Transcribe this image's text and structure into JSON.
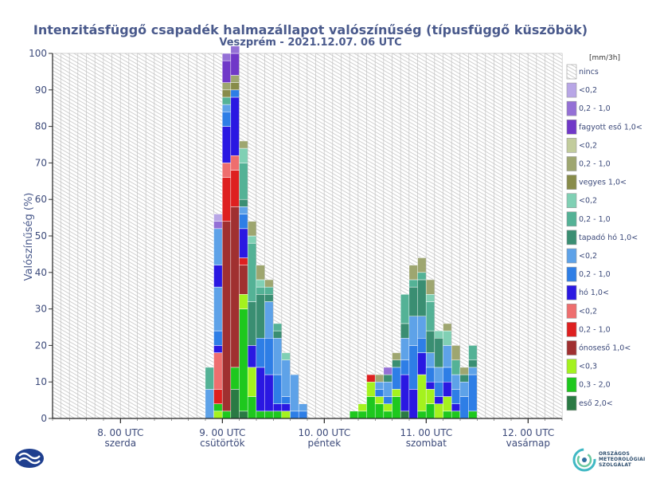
{
  "colors": {
    "title": "#4a5a8c",
    "axis_text": "#3c4a7a",
    "grid": "#dcdcdc",
    "hatch": "#c8c8c8"
  },
  "logo": {
    "org_line1": "ORSZÁGOS",
    "org_line2": "METEOROLÓGIAI",
    "org_line3": "SZOLGÁLAT"
  },
  "chart_data": {
    "type": "bar",
    "stacked": true,
    "title": "Intenzitásfüggő csapadék halmazállapot valószínűség (típusfüggő küszöbök)",
    "subtitle": "Veszprém - 2021.12.07. 06 UTC",
    "ylabel": "Valószínűség (%)",
    "ylim": [
      0,
      100
    ],
    "yticks": [
      0,
      10,
      20,
      30,
      40,
      50,
      60,
      70,
      80,
      90,
      100
    ],
    "x_tick_labels": [
      {
        "date": "8. 00 UTC",
        "day": "szerda",
        "index": 8
      },
      {
        "date": "9. 00 UTC",
        "day": "csütörtök",
        "index": 20
      },
      {
        "date": "10. 00 UTC",
        "day": "péntek",
        "index": 32
      },
      {
        "date": "11. 00 UTC",
        "day": "szombat",
        "index": 44
      },
      {
        "date": "12. 00 UTC",
        "day": "vasárnap",
        "index": 56
      }
    ],
    "bar_count": 60,
    "legend_unit": "[mm/3h]",
    "categories_legend": [
      {
        "name": "nincs",
        "color": "hatch"
      },
      {
        "name": "<0,2",
        "color": "#b8a6e6"
      },
      {
        "name": "0,2 - 1,0",
        "color": "#9470d6"
      },
      {
        "name": "fagyott eső 1,0<",
        "color": "#7038c8"
      },
      {
        "name": "<0,2",
        "color": "#c2cc9c"
      },
      {
        "name": "0,2 - 1,0",
        "color": "#9ea670"
      },
      {
        "name": "vegyes 1,0<",
        "color": "#888c4a"
      },
      {
        "name": "<0,2",
        "color": "#80d0b4"
      },
      {
        "name": "0,2 - 1,0",
        "color": "#54b296"
      },
      {
        "name": "tapadó hó 1,0<",
        "color": "#3a8e72"
      },
      {
        "name": "<0,2",
        "color": "#5ea2e8"
      },
      {
        "name": "0,2 - 1,0",
        "color": "#2e7ee6"
      },
      {
        "name": "hó 1,0<",
        "color": "#2a18e2"
      },
      {
        "name": "<0,2",
        "color": "#ee6e6e"
      },
      {
        "name": "0,2 - 1,0",
        "color": "#de2020"
      },
      {
        "name": "ónoseső 1,0<",
        "color": "#a03030"
      },
      {
        "name": "<0,3",
        "color": "#a4f21e"
      },
      {
        "name": "0,3 - 2,0",
        "color": "#1ec81e"
      },
      {
        "name": "eső 2,0<",
        "color": "#2a7a44"
      }
    ],
    "bars": [
      {
        "i": 18,
        "segments": [
          [
            "#5ea2e8",
            8
          ],
          [
            "#54b296",
            6
          ]
        ]
      },
      {
        "i": 19,
        "segments": [
          [
            "#a4f21e",
            2
          ],
          [
            "#1ec81e",
            2
          ],
          [
            "#de2020",
            4
          ],
          [
            "#ee6e6e",
            10
          ],
          [
            "#2a18e2",
            2
          ],
          [
            "#2e7ee6",
            4
          ],
          [
            "#5ea2e8",
            12
          ],
          [
            "#2a18e2",
            6
          ],
          [
            "#5ea2e8",
            10
          ],
          [
            "#9470d6",
            2
          ],
          [
            "#b8a6e6",
            2
          ]
        ]
      },
      {
        "i": 20,
        "segments": [
          [
            "#1ec81e",
            2
          ],
          [
            "#a03030",
            52
          ],
          [
            "#de2020",
            12
          ],
          [
            "#ee6e6e",
            4
          ],
          [
            "#2a18e2",
            10
          ],
          [
            "#2e7ee6",
            4
          ],
          [
            "#5ea2e8",
            2
          ],
          [
            "#54b296",
            2
          ],
          [
            "#888c4a",
            2
          ],
          [
            "#9ea670",
            2
          ],
          [
            "#7038c8",
            6
          ],
          [
            "#9470d6",
            2
          ]
        ]
      },
      {
        "i": 21,
        "segments": [
          [
            "#2a7a44",
            8
          ],
          [
            "#1ec81e",
            6
          ],
          [
            "#a03030",
            44
          ],
          [
            "#de2020",
            10
          ],
          [
            "#ee6e6e",
            4
          ],
          [
            "#2a18e2",
            16
          ],
          [
            "#2e7ee6",
            2
          ],
          [
            "#888c4a",
            2
          ],
          [
            "#9ea670",
            2
          ],
          [
            "#7038c8",
            6
          ],
          [
            "#9470d6",
            2
          ]
        ]
      },
      {
        "i": 22,
        "segments": [
          [
            "#2a7a44",
            2
          ],
          [
            "#1ec81e",
            28
          ],
          [
            "#a4f21e",
            4
          ],
          [
            "#a03030",
            8
          ],
          [
            "#de2020",
            2
          ],
          [
            "#2a18e2",
            8
          ],
          [
            "#2e7ee6",
            4
          ],
          [
            "#5ea2e8",
            2
          ],
          [
            "#3a8e72",
            2
          ],
          [
            "#54b296",
            10
          ],
          [
            "#80d0b4",
            4
          ],
          [
            "#9ea670",
            2
          ]
        ]
      },
      {
        "i": 23,
        "segments": [
          [
            "#1ec81e",
            6
          ],
          [
            "#a4f21e",
            8
          ],
          [
            "#2a18e2",
            6
          ],
          [
            "#3a8e72",
            12
          ],
          [
            "#54b296",
            16
          ],
          [
            "#80d0b4",
            2
          ],
          [
            "#9ea670",
            4
          ]
        ]
      },
      {
        "i": 24,
        "segments": [
          [
            "#1ec81e",
            2
          ],
          [
            "#2a18e2",
            12
          ],
          [
            "#2e7ee6",
            8
          ],
          [
            "#3a8e72",
            12
          ],
          [
            "#54b296",
            2
          ],
          [
            "#80d0b4",
            2
          ],
          [
            "#9ea670",
            4
          ]
        ]
      },
      {
        "i": 25,
        "segments": [
          [
            "#1ec81e",
            2
          ],
          [
            "#2a18e2",
            10
          ],
          [
            "#2e7ee6",
            10
          ],
          [
            "#5ea2e8",
            10
          ],
          [
            "#3a8e72",
            2
          ],
          [
            "#54b296",
            2
          ],
          [
            "#9ea670",
            2
          ]
        ]
      },
      {
        "i": 26,
        "segments": [
          [
            "#1ec81e",
            2
          ],
          [
            "#2a18e2",
            2
          ],
          [
            "#2e7ee6",
            8
          ],
          [
            "#5ea2e8",
            10
          ],
          [
            "#3a8e72",
            2
          ],
          [
            "#54b296",
            2
          ]
        ]
      },
      {
        "i": 27,
        "segments": [
          [
            "#a4f21e",
            2
          ],
          [
            "#2a18e2",
            2
          ],
          [
            "#2e7ee6",
            2
          ],
          [
            "#5ea2e8",
            10
          ],
          [
            "#80d0b4",
            2
          ]
        ]
      },
      {
        "i": 28,
        "segments": [
          [
            "#2e7ee6",
            2
          ],
          [
            "#5ea2e8",
            10
          ]
        ]
      },
      {
        "i": 29,
        "segments": [
          [
            "#2e7ee6",
            2
          ],
          [
            "#5ea2e8",
            2
          ]
        ]
      },
      {
        "i": 35,
        "segments": [
          [
            "#1ec81e",
            2
          ]
        ]
      },
      {
        "i": 36,
        "segments": [
          [
            "#1ec81e",
            2
          ],
          [
            "#a4f21e",
            2
          ]
        ]
      },
      {
        "i": 37,
        "segments": [
          [
            "#1ec81e",
            6
          ],
          [
            "#a4f21e",
            4
          ],
          [
            "#de2020",
            2
          ]
        ]
      },
      {
        "i": 38,
        "segments": [
          [
            "#1ec81e",
            4
          ],
          [
            "#a4f21e",
            2
          ],
          [
            "#2e7ee6",
            2
          ],
          [
            "#5ea2e8",
            2
          ],
          [
            "#9ea670",
            2
          ]
        ]
      },
      {
        "i": 39,
        "segments": [
          [
            "#1ec81e",
            2
          ],
          [
            "#a4f21e",
            2
          ],
          [
            "#2e7ee6",
            2
          ],
          [
            "#5ea2e8",
            4
          ],
          [
            "#3a8e72",
            2
          ],
          [
            "#9470d6",
            2
          ]
        ]
      },
      {
        "i": 40,
        "segments": [
          [
            "#1ec81e",
            6
          ],
          [
            "#a4f21e",
            2
          ],
          [
            "#2e7ee6",
            6
          ],
          [
            "#3a8e72",
            2
          ],
          [
            "#9ea670",
            2
          ]
        ]
      },
      {
        "i": 41,
        "segments": [
          [
            "#2a7a44",
            2
          ],
          [
            "#2a18e2",
            10
          ],
          [
            "#2e7ee6",
            4
          ],
          [
            "#5ea2e8",
            6
          ],
          [
            "#3a8e72",
            4
          ],
          [
            "#54b296",
            8
          ]
        ]
      },
      {
        "i": 42,
        "segments": [
          [
            "#2a18e2",
            8
          ],
          [
            "#2e7ee6",
            12
          ],
          [
            "#5ea2e8",
            8
          ],
          [
            "#3a8e72",
            8
          ],
          [
            "#54b296",
            2
          ],
          [
            "#9ea670",
            4
          ]
        ]
      },
      {
        "i": 43,
        "segments": [
          [
            "#1ec81e",
            2
          ],
          [
            "#a4f21e",
            10
          ],
          [
            "#2a18e2",
            6
          ],
          [
            "#2e7ee6",
            4
          ],
          [
            "#5ea2e8",
            6
          ],
          [
            "#3a8e72",
            10
          ],
          [
            "#54b296",
            2
          ],
          [
            "#9ea670",
            4
          ]
        ]
      },
      {
        "i": 44,
        "segments": [
          [
            "#1ec81e",
            4
          ],
          [
            "#a4f21e",
            4
          ],
          [
            "#2a18e2",
            2
          ],
          [
            "#2e7ee6",
            4
          ],
          [
            "#5ea2e8",
            4
          ],
          [
            "#3a8e72",
            6
          ],
          [
            "#54b296",
            8
          ],
          [
            "#80d0b4",
            2
          ],
          [
            "#9ea670",
            4
          ]
        ]
      },
      {
        "i": 45,
        "segments": [
          [
            "#a4f21e",
            4
          ],
          [
            "#2a18e2",
            2
          ],
          [
            "#2e7ee6",
            4
          ],
          [
            "#5ea2e8",
            4
          ],
          [
            "#3a8e72",
            8
          ],
          [
            "#80d0b4",
            2
          ]
        ]
      },
      {
        "i": 46,
        "segments": [
          [
            "#1ec81e",
            2
          ],
          [
            "#a4f21e",
            4
          ],
          [
            "#2a18e2",
            4
          ],
          [
            "#2e7ee6",
            4
          ],
          [
            "#5ea2e8",
            6
          ],
          [
            "#80d0b4",
            4
          ],
          [
            "#9ea670",
            2
          ]
        ]
      },
      {
        "i": 47,
        "segments": [
          [
            "#1ec81e",
            2
          ],
          [
            "#2a18e2",
            2
          ],
          [
            "#2e7ee6",
            4
          ],
          [
            "#5ea2e8",
            4
          ],
          [
            "#54b296",
            4
          ],
          [
            "#9ea670",
            4
          ]
        ]
      },
      {
        "i": 48,
        "segments": [
          [
            "#2e7ee6",
            6
          ],
          [
            "#5ea2e8",
            4
          ],
          [
            "#3a8e72",
            2
          ],
          [
            "#9ea670",
            2
          ]
        ]
      },
      {
        "i": 49,
        "segments": [
          [
            "#1ec81e",
            2
          ],
          [
            "#2e7ee6",
            10
          ],
          [
            "#5ea2e8",
            2
          ],
          [
            "#3a8e72",
            2
          ],
          [
            "#54b296",
            4
          ]
        ]
      }
    ]
  }
}
